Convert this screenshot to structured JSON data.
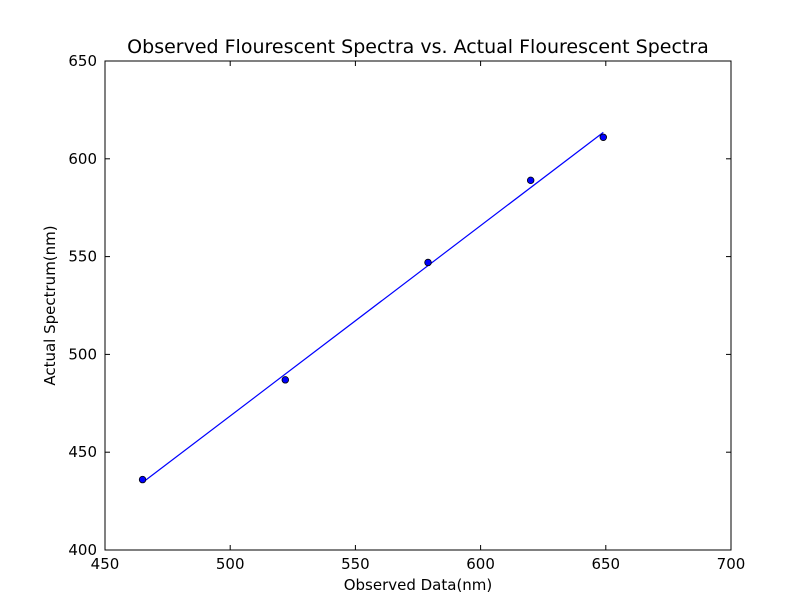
{
  "chart_data": {
    "type": "scatter",
    "title": "Observed Flourescent Spectra vs. Actual Flourescent Spectra",
    "xlabel": "Observed Data(nm)",
    "ylabel": "Actual Spectrum(nm)",
    "xlim": [
      450,
      700
    ],
    "ylim": [
      400,
      650
    ],
    "xticks": [
      450,
      500,
      550,
      600,
      650,
      700
    ],
    "yticks": [
      400,
      450,
      500,
      550,
      600,
      650
    ],
    "grid": false,
    "series": [
      {
        "kind": "scatter",
        "color": "#0000ff",
        "edge_color": "#000000",
        "x": [
          465,
          522,
          579,
          620,
          649
        ],
        "y": [
          436,
          487,
          547,
          589,
          611
        ]
      },
      {
        "kind": "line",
        "color": "#0000ff",
        "x": [
          465,
          649
        ],
        "y": [
          434.5,
          613.5
        ]
      }
    ]
  }
}
